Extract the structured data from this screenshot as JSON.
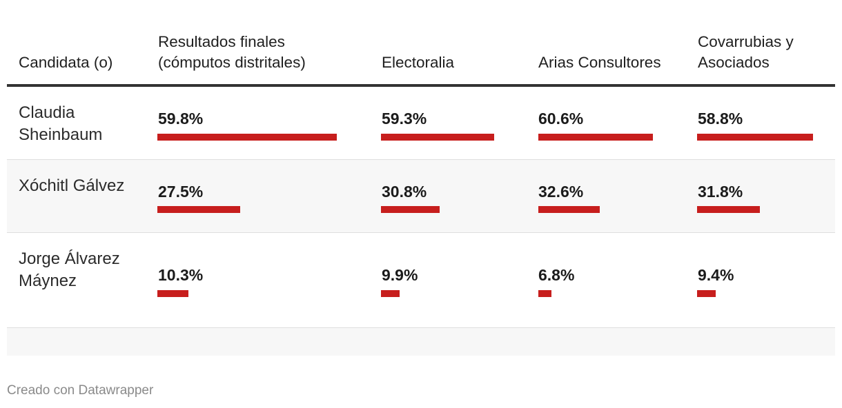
{
  "header": {
    "candidate": "Candidata (o)",
    "columns": [
      "Resultados finales (cómputos distritales)",
      "Electoralia",
      "Arias Consultores",
      "Covarrubias y Asociados"
    ]
  },
  "rows": [
    {
      "name": "Claudia Sheinbaum",
      "values": [
        "59.8%",
        "59.3%",
        "60.6%",
        "58.8%"
      ]
    },
    {
      "name": "Xóchitl Gálvez",
      "values": [
        "27.5%",
        "30.8%",
        "32.6%",
        "31.8%"
      ]
    },
    {
      "name": "Jorge Álvarez Máynez",
      "values": [
        "10.3%",
        "9.9%",
        "6.8%",
        "9.4%"
      ]
    }
  ],
  "chart_data": {
    "type": "table",
    "columns": [
      "Candidata (o)",
      "Resultados finales (cómputos distritales)",
      "Electoralia",
      "Arias Consultores",
      "Covarrubias y Asociados"
    ],
    "rows": [
      {
        "candidate": "Claudia Sheinbaum",
        "values": [
          59.8,
          59.3,
          60.6,
          58.8
        ]
      },
      {
        "candidate": "Xóchitl Gálvez",
        "values": [
          27.5,
          30.8,
          32.6,
          31.8
        ]
      },
      {
        "candidate": "Jorge Álvarez Máynez",
        "values": [
          10.3,
          9.9,
          6.8,
          9.4
        ]
      }
    ],
    "unit": "%"
  },
  "colors": {
    "bar": "#c71e1d",
    "row_alt": "#f7f7f7",
    "rule": "#333333"
  },
  "footer": {
    "credit": "Creado con Datawrapper"
  }
}
